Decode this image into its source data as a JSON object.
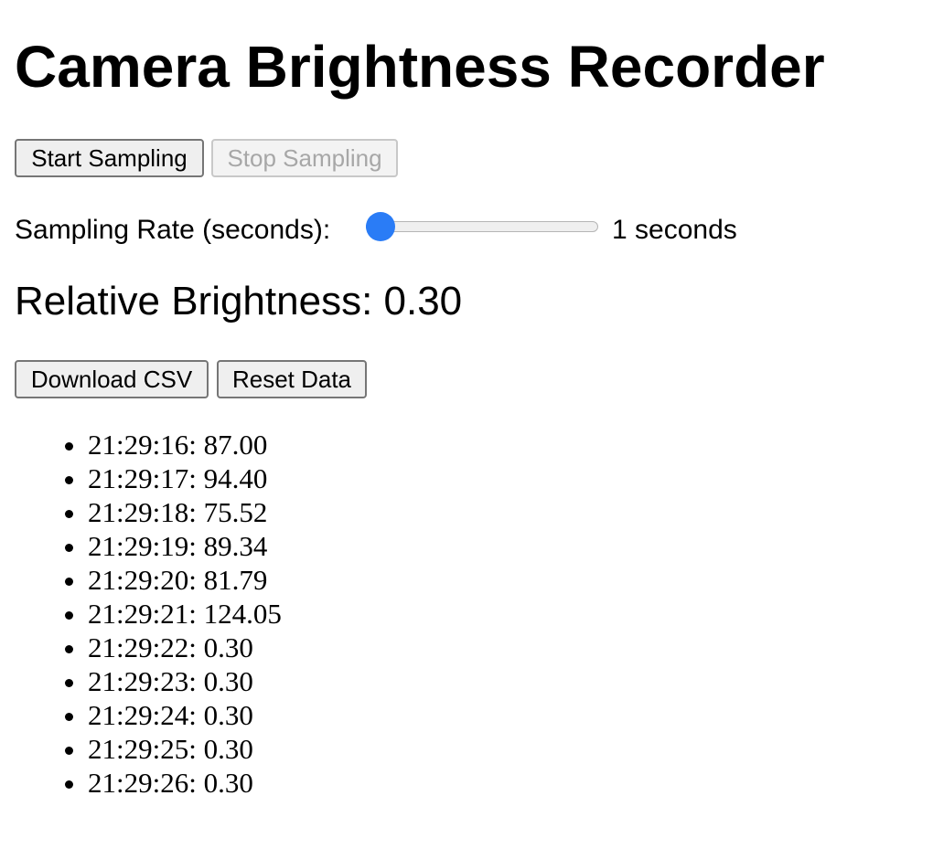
{
  "page": {
    "title": "Camera Brightness Recorder"
  },
  "controls": {
    "start_label": "Start Sampling",
    "stop_label": "Stop Sampling",
    "stop_disabled": true,
    "rate_label": "Sampling Rate (seconds):",
    "rate_value": 1,
    "rate_min": 1,
    "rate_max": 10,
    "rate_display": "1 seconds"
  },
  "brightness": {
    "text": "Relative Brightness: 0.30"
  },
  "actions": {
    "download_label": "Download CSV",
    "reset_label": "Reset Data"
  },
  "samples": [
    "21:29:16: 87.00",
    "21:29:17: 94.40",
    "21:29:18: 75.52",
    "21:29:19: 89.34",
    "21:29:20: 81.79",
    "21:29:21: 124.05",
    "21:29:22: 0.30",
    "21:29:23: 0.30",
    "21:29:24: 0.30",
    "21:29:25: 0.30",
    "21:29:26: 0.30"
  ],
  "colors": {
    "accent": "#2a7cf6"
  }
}
